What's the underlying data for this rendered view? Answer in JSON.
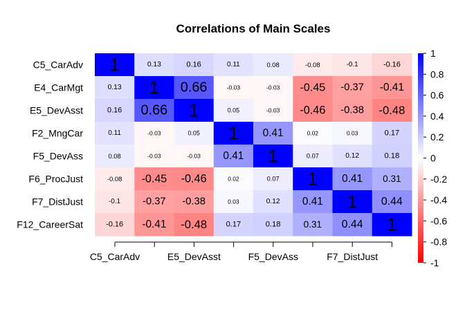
{
  "chart_data": {
    "type": "heatmap",
    "title": "Correlations of Main Scales",
    "rows": [
      "C5_CarAdv",
      "E4_CarMgt",
      "E5_DevAsst",
      "F2_MngCar",
      "F5_DevAss",
      "F6_ProcJust",
      "F7_DistJust",
      "F12_CareerSat"
    ],
    "x_tick_labels": [
      "C5_CarAdv",
      "E5_DevAsst",
      "F5_DevAss",
      "F7_DistJust"
    ],
    "values": [
      [
        1,
        0.13,
        0.16,
        0.11,
        0.08,
        -0.08,
        -0.1,
        -0.16
      ],
      [
        0.13,
        1,
        0.66,
        -0.03,
        -0.03,
        -0.45,
        -0.37,
        -0.41
      ],
      [
        0.16,
        0.66,
        1,
        0.05,
        -0.03,
        -0.46,
        -0.38,
        -0.48
      ],
      [
        0.11,
        -0.03,
        0.05,
        1,
        0.41,
        0.02,
        0.03,
        0.17
      ],
      [
        0.08,
        -0.03,
        -0.03,
        0.41,
        1,
        0.07,
        0.12,
        0.18
      ],
      [
        -0.08,
        -0.45,
        -0.46,
        0.02,
        0.07,
        1,
        0.41,
        0.31
      ],
      [
        -0.1,
        -0.37,
        -0.38,
        0.03,
        0.12,
        0.41,
        1,
        0.44
      ],
      [
        -0.16,
        -0.41,
        -0.48,
        0.17,
        0.18,
        0.31,
        0.44,
        1
      ]
    ],
    "value_range": [
      -1,
      1
    ],
    "colors": {
      "negative": "#ff0000",
      "zero": "#ffffff",
      "positive": "#0000ff"
    },
    "legend": {
      "position": "right",
      "ticks": [
        "1",
        "0.8",
        "0.6",
        "0.4",
        "0.2",
        "0",
        "-0.2",
        "-0.4",
        "-0.6",
        "-0.8",
        "-1"
      ]
    }
  }
}
